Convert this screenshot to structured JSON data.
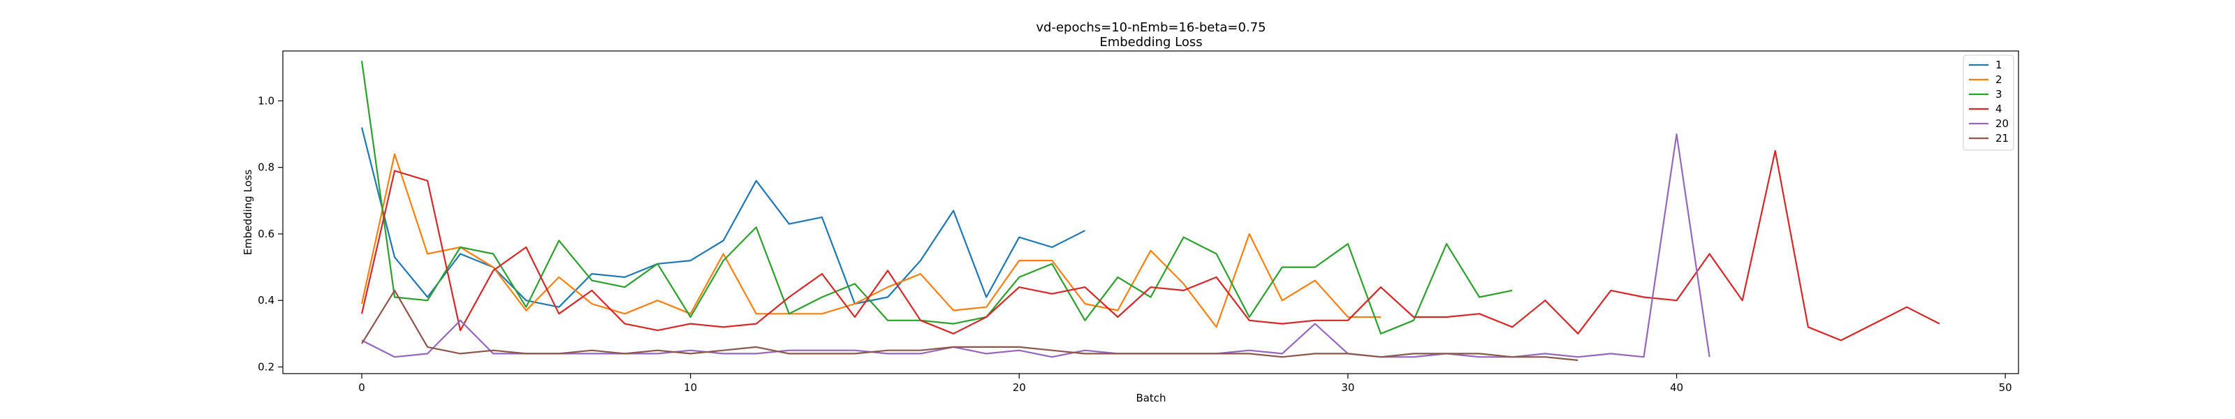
{
  "chart_data": {
    "type": "line",
    "title": "vd-epochs=10-nEmb=16-beta=0.75",
    "subtitle": "Embedding Loss",
    "xlabel": "Batch",
    "ylabel": "Embedding Loss",
    "xlim": [
      -2.4,
      50.4
    ],
    "ylim": [
      0.18,
      1.15
    ],
    "xticks": [
      0,
      10,
      20,
      30,
      40,
      50
    ],
    "yticks": [
      0.2,
      0.4,
      0.6,
      0.8,
      1.0
    ],
    "xtick_labels": [
      "0",
      "10",
      "20",
      "30",
      "40",
      "50"
    ],
    "ytick_labels": [
      "0.2",
      "0.4",
      "0.6",
      "0.8",
      "1.0"
    ],
    "grid": false,
    "legend_position": "top-right",
    "series": [
      {
        "name": "1",
        "color": "#1f77b4",
        "values": [
          0.92,
          0.53,
          0.41,
          0.54,
          0.5,
          0.4,
          0.38,
          0.48,
          0.47,
          0.51,
          0.52,
          0.58,
          0.76,
          0.63,
          0.65,
          0.39,
          0.41,
          0.52,
          0.67,
          0.41,
          0.59,
          0.56,
          0.61
        ]
      },
      {
        "name": "2",
        "color": "#ff7f0e",
        "values": [
          0.39,
          0.84,
          0.54,
          0.56,
          0.5,
          0.37,
          0.47,
          0.39,
          0.36,
          0.4,
          0.36,
          0.54,
          0.36,
          0.36,
          0.36,
          0.39,
          0.44,
          0.48,
          0.37,
          0.38,
          0.52,
          0.52,
          0.39,
          0.37,
          0.55,
          0.45,
          0.32,
          0.6,
          0.4,
          0.46,
          0.35,
          0.35
        ]
      },
      {
        "name": "3",
        "color": "#2ca02c",
        "values": [
          1.12,
          0.41,
          0.4,
          0.56,
          0.54,
          0.38,
          0.58,
          0.46,
          0.44,
          0.51,
          0.35,
          0.52,
          0.62,
          0.36,
          0.41,
          0.45,
          0.34,
          0.34,
          0.33,
          0.35,
          0.47,
          0.51,
          0.34,
          0.47,
          0.41,
          0.59,
          0.54,
          0.35,
          0.5,
          0.5,
          0.57,
          0.3,
          0.34,
          0.57,
          0.41,
          0.43
        ]
      },
      {
        "name": "4",
        "color": "#d62728",
        "values": [
          0.36,
          0.79,
          0.76,
          0.31,
          0.49,
          0.56,
          0.36,
          0.43,
          0.33,
          0.31,
          0.33,
          0.32,
          0.33,
          0.41,
          0.48,
          0.35,
          0.49,
          0.34,
          0.3,
          0.35,
          0.44,
          0.42,
          0.44,
          0.35,
          0.44,
          0.43,
          0.47,
          0.34,
          0.33,
          0.34,
          0.34,
          0.44,
          0.35,
          0.35,
          0.36,
          0.32,
          0.4,
          0.3,
          0.43,
          0.41,
          0.4,
          0.54,
          0.4,
          0.85,
          0.32,
          0.28,
          0.33,
          0.38,
          0.33
        ]
      },
      {
        "name": "20",
        "color": "#9467bd",
        "values": [
          0.28,
          0.23,
          0.24,
          0.34,
          0.24,
          0.24,
          0.24,
          0.24,
          0.24,
          0.24,
          0.25,
          0.24,
          0.24,
          0.25,
          0.25,
          0.25,
          0.24,
          0.24,
          0.26,
          0.24,
          0.25,
          0.23,
          0.25,
          0.24,
          0.24,
          0.24,
          0.24,
          0.25,
          0.24,
          0.33,
          0.24,
          0.23,
          0.23,
          0.24,
          0.23,
          0.23,
          0.24,
          0.23,
          0.24,
          0.23,
          0.9,
          0.23
        ]
      },
      {
        "name": "21",
        "color": "#8c564b",
        "values": [
          0.27,
          0.43,
          0.26,
          0.24,
          0.25,
          0.24,
          0.24,
          0.25,
          0.24,
          0.25,
          0.24,
          0.25,
          0.26,
          0.24,
          0.24,
          0.24,
          0.25,
          0.25,
          0.26,
          0.26,
          0.26,
          0.25,
          0.24,
          0.24,
          0.24,
          0.24,
          0.24,
          0.24,
          0.23,
          0.24,
          0.24,
          0.23,
          0.24,
          0.24,
          0.24,
          0.23,
          0.23,
          0.22
        ]
      }
    ]
  }
}
